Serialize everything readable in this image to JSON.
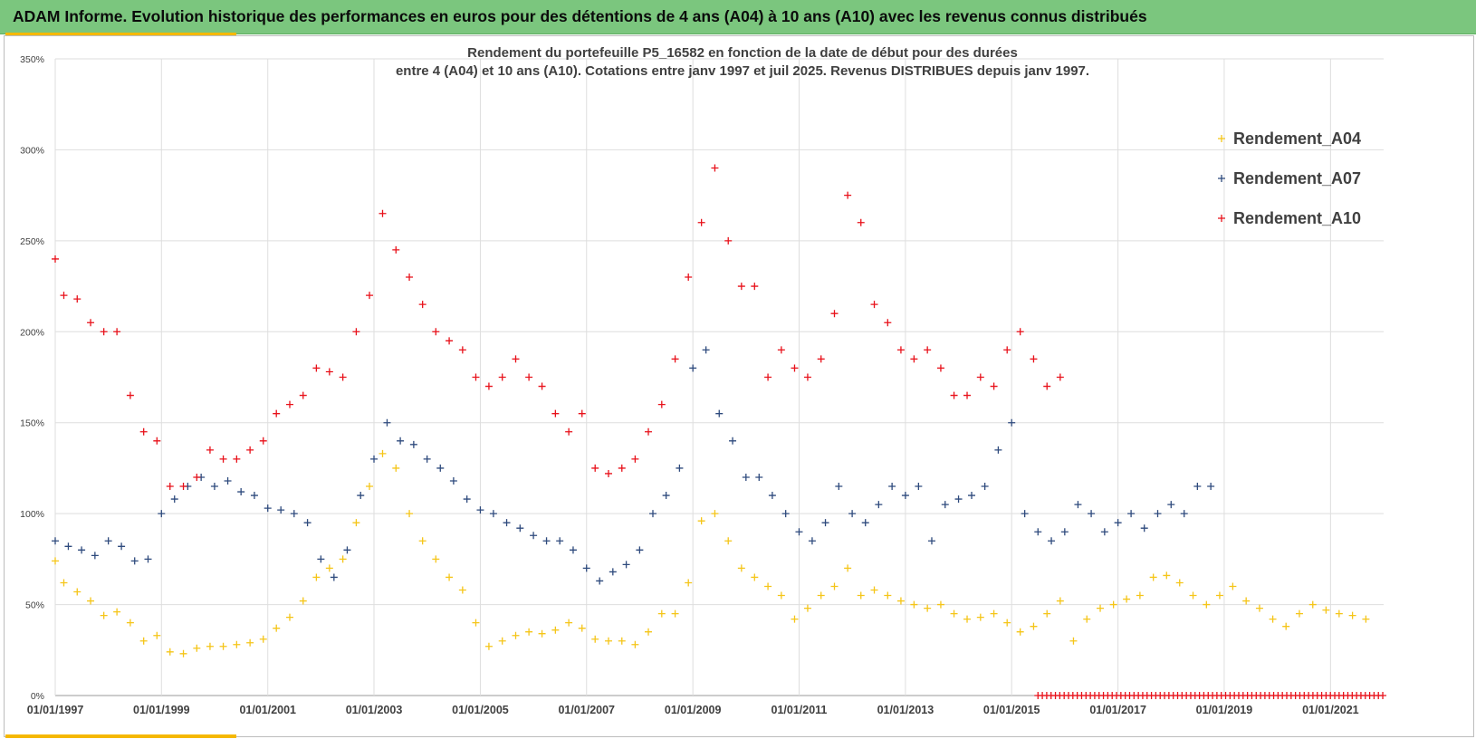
{
  "banner": {
    "title": "ADAM Informe. Evolution historique des performances en euros pour des détentions de 4 ans (A04) à 10 ans (A10) avec les revenus connus distribués"
  },
  "chart_data": {
    "type": "scatter",
    "title": [
      "Rendement du portefeuille P5_16582 en fonction de la date de début pour des durées",
      "entre 4 (A04) et 10 ans (A10). Cotations  entre janv 1997 et juil 2025. Revenus DISTRIBUES depuis janv 1997."
    ],
    "marker": "+",
    "x_type": "date",
    "xlim": [
      "1997-01-01",
      "2022-01-01"
    ],
    "x_ticks": [
      "01/01/1997",
      "01/01/1999",
      "01/01/2001",
      "01/01/2003",
      "01/01/2005",
      "01/01/2007",
      "01/01/2009",
      "01/01/2011",
      "01/01/2013",
      "01/01/2015",
      "01/01/2017",
      "01/01/2019",
      "01/01/2021"
    ],
    "x_tick_dates": [
      "1997-01-01",
      "1999-01-01",
      "2001-01-01",
      "2003-01-01",
      "2005-01-01",
      "2007-01-01",
      "2009-01-01",
      "2011-01-01",
      "2013-01-01",
      "2015-01-01",
      "2017-01-01",
      "2019-01-01",
      "2021-01-01"
    ],
    "ylim": [
      0,
      350
    ],
    "y_unit": "%",
    "y_ticks": [
      "0%",
      "50%",
      "100%",
      "150%",
      "200%",
      "250%",
      "300%",
      "350%"
    ],
    "y_tick_values": [
      0,
      50,
      100,
      150,
      200,
      250,
      300,
      350
    ],
    "grid": true,
    "legend_position": "top-right",
    "series": [
      {
        "name": "Rendement_A04",
        "color": "#f5c518",
        "points": [
          [
            "1997-01-01",
            74
          ],
          [
            "1997-03-01",
            62
          ],
          [
            "1997-06-01",
            57
          ],
          [
            "1997-09-01",
            52
          ],
          [
            "1997-12-01",
            44
          ],
          [
            "1998-03-01",
            46
          ],
          [
            "1998-06-01",
            40
          ],
          [
            "1998-09-01",
            30
          ],
          [
            "1998-12-01",
            33
          ],
          [
            "1999-03-01",
            24
          ],
          [
            "1999-06-01",
            23
          ],
          [
            "1999-09-01",
            26
          ],
          [
            "1999-12-01",
            27
          ],
          [
            "2000-03-01",
            27
          ],
          [
            "2000-06-01",
            28
          ],
          [
            "2000-09-01",
            29
          ],
          [
            "2000-12-01",
            31
          ],
          [
            "2001-03-01",
            37
          ],
          [
            "2001-06-01",
            43
          ],
          [
            "2001-09-01",
            52
          ],
          [
            "2001-12-01",
            65
          ],
          [
            "2002-03-01",
            70
          ],
          [
            "2002-06-01",
            75
          ],
          [
            "2002-09-01",
            95
          ],
          [
            "2002-12-01",
            115
          ],
          [
            "2003-03-01",
            133
          ],
          [
            "2003-06-01",
            125
          ],
          [
            "2003-09-01",
            100
          ],
          [
            "2003-12-01",
            85
          ],
          [
            "2004-03-01",
            75
          ],
          [
            "2004-06-01",
            65
          ],
          [
            "2004-09-01",
            58
          ],
          [
            "2004-12-01",
            40
          ],
          [
            "2005-03-01",
            27
          ],
          [
            "2005-06-01",
            30
          ],
          [
            "2005-09-01",
            33
          ],
          [
            "2005-12-01",
            35
          ],
          [
            "2006-03-01",
            34
          ],
          [
            "2006-06-01",
            36
          ],
          [
            "2006-09-01",
            40
          ],
          [
            "2006-12-01",
            37
          ],
          [
            "2007-03-01",
            31
          ],
          [
            "2007-06-01",
            30
          ],
          [
            "2007-09-01",
            30
          ],
          [
            "2007-12-01",
            28
          ],
          [
            "2008-03-01",
            35
          ],
          [
            "2008-06-01",
            45
          ],
          [
            "2008-09-01",
            45
          ],
          [
            "2008-12-01",
            62
          ],
          [
            "2009-03-01",
            96
          ],
          [
            "2009-06-01",
            100
          ],
          [
            "2009-09-01",
            85
          ],
          [
            "2009-12-01",
            70
          ],
          [
            "2010-03-01",
            65
          ],
          [
            "2010-06-01",
            60
          ],
          [
            "2010-09-01",
            55
          ],
          [
            "2010-12-01",
            42
          ],
          [
            "2011-03-01",
            48
          ],
          [
            "2011-06-01",
            55
          ],
          [
            "2011-09-01",
            60
          ],
          [
            "2011-12-01",
            70
          ],
          [
            "2012-03-01",
            55
          ],
          [
            "2012-06-01",
            58
          ],
          [
            "2012-09-01",
            55
          ],
          [
            "2012-12-01",
            52
          ],
          [
            "2013-03-01",
            50
          ],
          [
            "2013-06-01",
            48
          ],
          [
            "2013-09-01",
            50
          ],
          [
            "2013-12-01",
            45
          ],
          [
            "2014-03-01",
            42
          ],
          [
            "2014-06-01",
            43
          ],
          [
            "2014-09-01",
            45
          ],
          [
            "2014-12-01",
            40
          ],
          [
            "2015-03-01",
            35
          ],
          [
            "2015-06-01",
            38
          ],
          [
            "2015-09-01",
            45
          ],
          [
            "2015-12-01",
            52
          ],
          [
            "2016-03-01",
            30
          ],
          [
            "2016-06-01",
            42
          ],
          [
            "2016-09-01",
            48
          ],
          [
            "2016-12-01",
            50
          ],
          [
            "2017-03-01",
            53
          ],
          [
            "2017-06-01",
            55
          ],
          [
            "2017-09-01",
            65
          ],
          [
            "2017-12-01",
            66
          ],
          [
            "2018-03-01",
            62
          ],
          [
            "2018-06-01",
            55
          ],
          [
            "2018-09-01",
            50
          ],
          [
            "2018-12-01",
            55
          ],
          [
            "2019-03-01",
            60
          ],
          [
            "2019-06-01",
            52
          ],
          [
            "2019-09-01",
            48
          ],
          [
            "2019-12-01",
            42
          ],
          [
            "2020-03-01",
            38
          ],
          [
            "2020-06-01",
            45
          ],
          [
            "2020-09-01",
            50
          ],
          [
            "2020-12-01",
            47
          ],
          [
            "2021-03-01",
            45
          ],
          [
            "2021-06-01",
            44
          ],
          [
            "2021-09-01",
            42
          ]
        ]
      },
      {
        "name": "Rendement_A07",
        "color": "#2e4a7d",
        "points": [
          [
            "1997-01-01",
            85
          ],
          [
            "1997-04-01",
            82
          ],
          [
            "1997-07-01",
            80
          ],
          [
            "1997-10-01",
            77
          ],
          [
            "1998-01-01",
            85
          ],
          [
            "1998-04-01",
            82
          ],
          [
            "1998-07-01",
            74
          ],
          [
            "1998-10-01",
            75
          ],
          [
            "1999-01-01",
            100
          ],
          [
            "1999-04-01",
            108
          ],
          [
            "1999-07-01",
            115
          ],
          [
            "1999-10-01",
            120
          ],
          [
            "2000-01-01",
            115
          ],
          [
            "2000-04-01",
            118
          ],
          [
            "2000-07-01",
            112
          ],
          [
            "2000-10-01",
            110
          ],
          [
            "2001-01-01",
            103
          ],
          [
            "2001-04-01",
            102
          ],
          [
            "2001-07-01",
            100
          ],
          [
            "2001-10-01",
            95
          ],
          [
            "2002-01-01",
            75
          ],
          [
            "2002-04-01",
            65
          ],
          [
            "2002-07-01",
            80
          ],
          [
            "2002-10-01",
            110
          ],
          [
            "2003-01-01",
            130
          ],
          [
            "2003-04-01",
            150
          ],
          [
            "2003-07-01",
            140
          ],
          [
            "2003-10-01",
            138
          ],
          [
            "2004-01-01",
            130
          ],
          [
            "2004-04-01",
            125
          ],
          [
            "2004-07-01",
            118
          ],
          [
            "2004-10-01",
            108
          ],
          [
            "2005-01-01",
            102
          ],
          [
            "2005-04-01",
            100
          ],
          [
            "2005-07-01",
            95
          ],
          [
            "2005-10-01",
            92
          ],
          [
            "2006-01-01",
            88
          ],
          [
            "2006-04-01",
            85
          ],
          [
            "2006-07-01",
            85
          ],
          [
            "2006-10-01",
            80
          ],
          [
            "2007-01-01",
            70
          ],
          [
            "2007-04-01",
            63
          ],
          [
            "2007-07-01",
            68
          ],
          [
            "2007-10-01",
            72
          ],
          [
            "2008-01-01",
            80
          ],
          [
            "2008-04-01",
            100
          ],
          [
            "2008-07-01",
            110
          ],
          [
            "2008-10-01",
            125
          ],
          [
            "2009-01-01",
            180
          ],
          [
            "2009-04-01",
            190
          ],
          [
            "2009-07-01",
            155
          ],
          [
            "2009-10-01",
            140
          ],
          [
            "2010-01-01",
            120
          ],
          [
            "2010-04-01",
            120
          ],
          [
            "2010-07-01",
            110
          ],
          [
            "2010-10-01",
            100
          ],
          [
            "2011-01-01",
            90
          ],
          [
            "2011-04-01",
            85
          ],
          [
            "2011-07-01",
            95
          ],
          [
            "2011-10-01",
            115
          ],
          [
            "2012-01-01",
            100
          ],
          [
            "2012-04-01",
            95
          ],
          [
            "2012-07-01",
            105
          ],
          [
            "2012-10-01",
            115
          ],
          [
            "2013-01-01",
            110
          ],
          [
            "2013-04-01",
            115
          ],
          [
            "2013-07-01",
            85
          ],
          [
            "2013-10-01",
            105
          ],
          [
            "2014-01-01",
            108
          ],
          [
            "2014-04-01",
            110
          ],
          [
            "2014-07-01",
            115
          ],
          [
            "2014-10-01",
            135
          ],
          [
            "2015-01-01",
            150
          ],
          [
            "2015-04-01",
            100
          ],
          [
            "2015-07-01",
            90
          ],
          [
            "2015-10-01",
            85
          ],
          [
            "2016-01-01",
            90
          ],
          [
            "2016-04-01",
            105
          ],
          [
            "2016-07-01",
            100
          ],
          [
            "2016-10-01",
            90
          ],
          [
            "2017-01-01",
            95
          ],
          [
            "2017-04-01",
            100
          ],
          [
            "2017-07-01",
            92
          ],
          [
            "2017-10-01",
            100
          ],
          [
            "2018-01-01",
            105
          ],
          [
            "2018-04-01",
            100
          ],
          [
            "2018-07-01",
            115
          ],
          [
            "2018-10-01",
            115
          ]
        ]
      },
      {
        "name": "Rendement_A10",
        "color": "#e8111a",
        "points": [
          [
            "1997-01-01",
            240
          ],
          [
            "1997-03-01",
            220
          ],
          [
            "1997-06-01",
            218
          ],
          [
            "1997-09-01",
            205
          ],
          [
            "1997-12-01",
            200
          ],
          [
            "1998-03-01",
            200
          ],
          [
            "1998-06-01",
            165
          ],
          [
            "1998-09-01",
            145
          ],
          [
            "1998-12-01",
            140
          ],
          [
            "1999-03-01",
            115
          ],
          [
            "1999-06-01",
            115
          ],
          [
            "1999-09-01",
            120
          ],
          [
            "1999-12-01",
            135
          ],
          [
            "2000-03-01",
            130
          ],
          [
            "2000-06-01",
            130
          ],
          [
            "2000-09-01",
            135
          ],
          [
            "2000-12-01",
            140
          ],
          [
            "2001-03-01",
            155
          ],
          [
            "2001-06-01",
            160
          ],
          [
            "2001-09-01",
            165
          ],
          [
            "2001-12-01",
            180
          ],
          [
            "2002-03-01",
            178
          ],
          [
            "2002-06-01",
            175
          ],
          [
            "2002-09-01",
            200
          ],
          [
            "2002-12-01",
            220
          ],
          [
            "2003-03-01",
            265
          ],
          [
            "2003-06-01",
            245
          ],
          [
            "2003-09-01",
            230
          ],
          [
            "2003-12-01",
            215
          ],
          [
            "2004-03-01",
            200
          ],
          [
            "2004-06-01",
            195
          ],
          [
            "2004-09-01",
            190
          ],
          [
            "2004-12-01",
            175
          ],
          [
            "2005-03-01",
            170
          ],
          [
            "2005-06-01",
            175
          ],
          [
            "2005-09-01",
            185
          ],
          [
            "2005-12-01",
            175
          ],
          [
            "2006-03-01",
            170
          ],
          [
            "2006-06-01",
            155
          ],
          [
            "2006-09-01",
            145
          ],
          [
            "2006-12-01",
            155
          ],
          [
            "2007-03-01",
            125
          ],
          [
            "2007-06-01",
            122
          ],
          [
            "2007-09-01",
            125
          ],
          [
            "2007-12-01",
            130
          ],
          [
            "2008-03-01",
            145
          ],
          [
            "2008-06-01",
            160
          ],
          [
            "2008-09-01",
            185
          ],
          [
            "2008-12-01",
            230
          ],
          [
            "2009-03-01",
            260
          ],
          [
            "2009-06-01",
            290
          ],
          [
            "2009-09-01",
            250
          ],
          [
            "2009-12-01",
            225
          ],
          [
            "2010-03-01",
            225
          ],
          [
            "2010-06-01",
            175
          ],
          [
            "2010-09-01",
            190
          ],
          [
            "2010-12-01",
            180
          ],
          [
            "2011-03-01",
            175
          ],
          [
            "2011-06-01",
            185
          ],
          [
            "2011-09-01",
            210
          ],
          [
            "2011-12-01",
            275
          ],
          [
            "2012-03-01",
            260
          ],
          [
            "2012-06-01",
            215
          ],
          [
            "2012-09-01",
            205
          ],
          [
            "2012-12-01",
            190
          ],
          [
            "2013-03-01",
            185
          ],
          [
            "2013-06-01",
            190
          ],
          [
            "2013-09-01",
            180
          ],
          [
            "2013-12-01",
            165
          ],
          [
            "2014-03-01",
            165
          ],
          [
            "2014-06-01",
            175
          ],
          [
            "2014-09-01",
            170
          ],
          [
            "2014-12-01",
            190
          ],
          [
            "2015-03-01",
            200
          ],
          [
            "2015-06-01",
            185
          ],
          [
            "2015-09-01",
            170
          ],
          [
            "2015-12-01",
            175
          ]
        ],
        "baseline": {
          "from": "2015-07-01",
          "to": "2022-01-01",
          "value": 0
        }
      }
    ]
  }
}
